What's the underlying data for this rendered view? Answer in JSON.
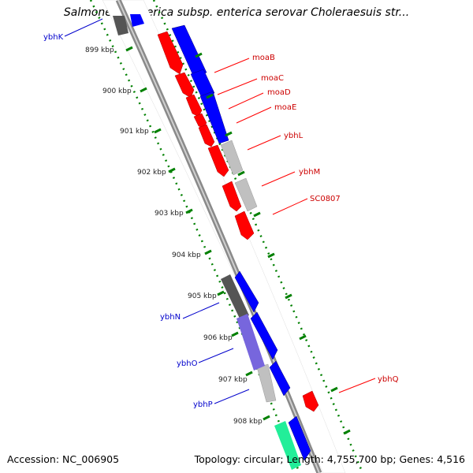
{
  "title": "Salmonella enterica subsp. enterica serovar Choleraesuis str...",
  "footer": {
    "accession_label": "Accession:",
    "accession_value": "NC_006905",
    "topology_label": "Topology:",
    "topology_value": "circular",
    "length_label": "Length:",
    "length_value": "4,755,700 bp",
    "genes_label": "Genes:",
    "genes_value": "4,516"
  },
  "ticks": [
    "899 kbp",
    "900 kbp",
    "901 kbp",
    "902 kbp",
    "903 kbp",
    "904 kbp",
    "905 kbp",
    "906 kbp",
    "907 kbp",
    "908 kbp"
  ],
  "genes": {
    "forward": [
      "moaB",
      "moaC",
      "moaD",
      "moaE",
      "ybhL",
      "ybhM",
      "SC0807",
      "ybhQ"
    ],
    "reverse": [
      "ybhK",
      "ybhN",
      "ybhO",
      "ybhP"
    ]
  },
  "colors": {
    "forward_gene": "#ff0000",
    "forward_label": "#cc0000",
    "reverse_label": "#0000cc",
    "cds_blue": "#0000ff",
    "tick_marks": "#008000",
    "backbone": "#888888"
  }
}
